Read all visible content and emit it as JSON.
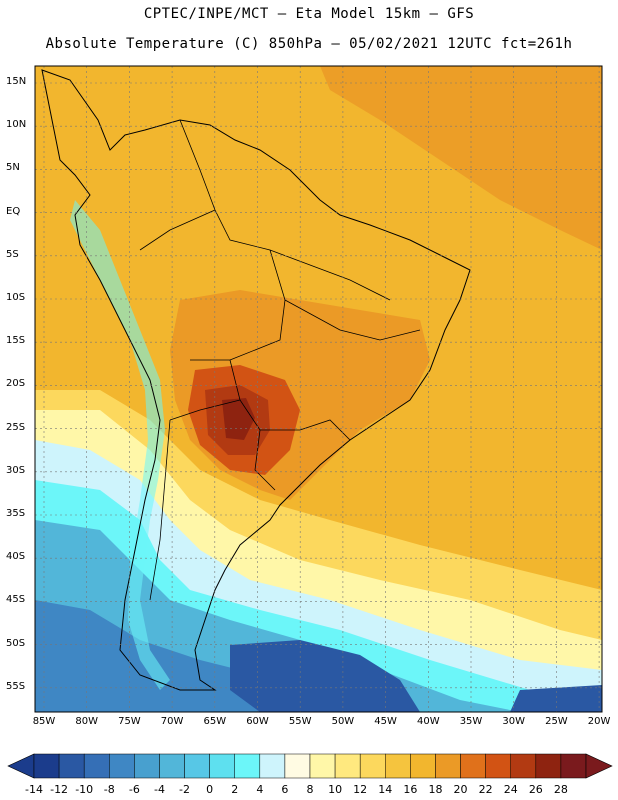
{
  "header": {
    "line1": "CPTEC/INPE/MCT —  Eta Model 15km — GFS",
    "line2": "Absolute Temperature (C) 850hPa — 05/02/2021 12UTC fct=261h"
  },
  "map": {
    "lat_ticks": [
      "15N",
      "10N",
      "5N",
      "EQ",
      "5S",
      "10S",
      "15S",
      "20S",
      "25S",
      "30S",
      "35S",
      "40S",
      "45S",
      "50S",
      "55S"
    ],
    "lon_ticks": [
      "85W",
      "80W",
      "75W",
      "70W",
      "65W",
      "60W",
      "55W",
      "50W",
      "45W",
      "40W",
      "35W",
      "30W",
      "25W",
      "20W"
    ],
    "ocean_fill": "#f2b62e"
  },
  "colorbar": {
    "labels": [
      "-14",
      "-12",
      "-10",
      "-8",
      "-6",
      "-4",
      "-2",
      "0",
      "2",
      "4",
      "6",
      "8",
      "10",
      "12",
      "14",
      "16",
      "18",
      "20",
      "22",
      "24",
      "26",
      "28"
    ],
    "colors": [
      "#1b3c8c",
      "#2a58a3",
      "#356fb6",
      "#3f87c4",
      "#48a0cf",
      "#52b6d9",
      "#57c7e6",
      "#5ee0ef",
      "#6cf6f9",
      "#cef4fc",
      "#fffbe3",
      "#fff7a8",
      "#ffe97f",
      "#fcd85d",
      "#f5c43e",
      "#f2b62e",
      "#eb9a26",
      "#e0711b",
      "#d25314",
      "#b23a12",
      "#8e2310",
      "#7a1a1d"
    ]
  }
}
